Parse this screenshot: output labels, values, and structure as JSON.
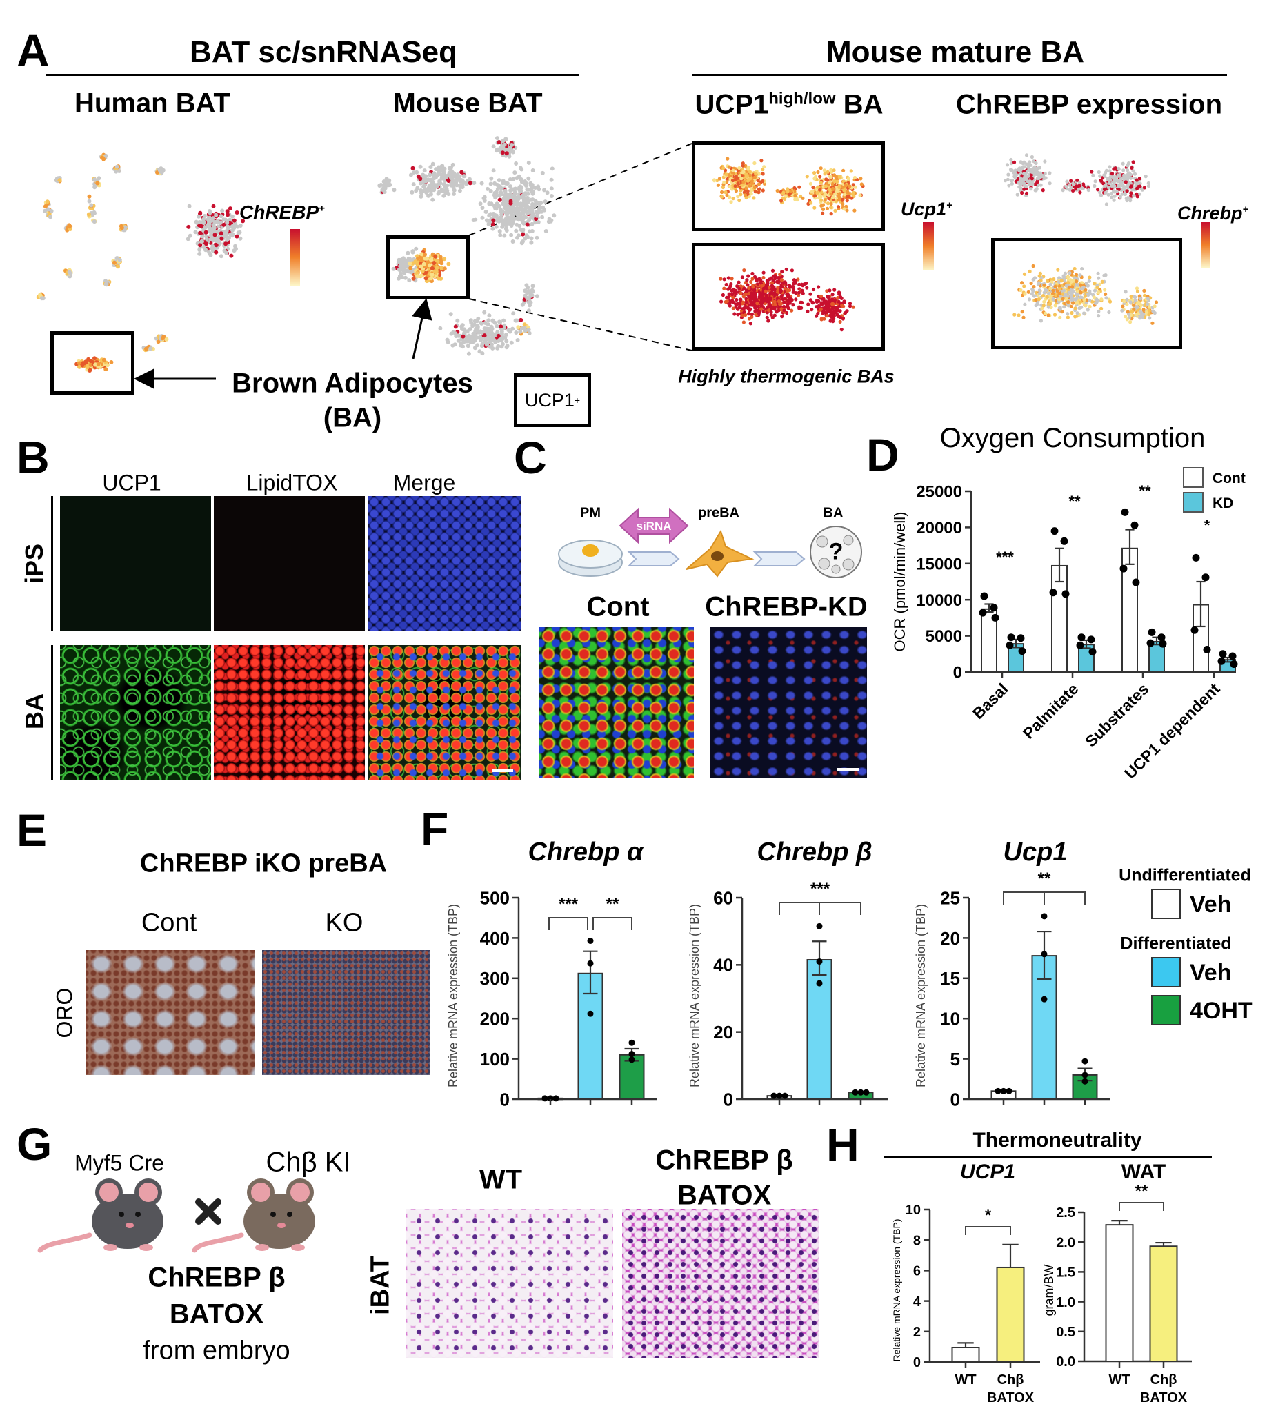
{
  "panelA": {
    "letter": "A",
    "left_header": "BAT sc/snRNASeq",
    "right_header": "Mouse mature BA",
    "human_title": "Human BAT",
    "mouse_title": "Mouse BAT",
    "ucp1_title_main": "UCP1",
    "ucp1_title_sup": "high/low",
    "ucp1_title_suffix": "BA",
    "chrebp_title": "ChREBP expression",
    "human_legend": "ChREBP",
    "human_legend_sup": "+",
    "ucp1_legend": "Ucp1",
    "ucp1_legend_sup": "+",
    "chrebp_legend": "Chrebp",
    "chrebp_legend_sup": "+",
    "ba_label_line1": "Brown Adipocytes",
    "ba_label_line2": "(BA)",
    "ucp1_box_label": "UCP1",
    "ucp1_box_sup": "+",
    "thermogenic_label": "Highly thermogenic BAs",
    "colors": {
      "gray": "#c8c8c8",
      "low": "#f9e08a",
      "mid": "#f29a3a",
      "high": "#c8102e"
    }
  },
  "panelB": {
    "letter": "B",
    "columns": [
      "UCP1",
      "LipidTOX",
      "Merge"
    ],
    "rows": [
      "iPS",
      "BA"
    ]
  },
  "panelC": {
    "letter": "C",
    "pm": "PM",
    "sirna": "siRNA",
    "preba": "preBA",
    "ba": "BA",
    "question": "?",
    "cont": "Cont",
    "kd": "ChREBP-KD"
  },
  "panelD": {
    "letter": "D"
  },
  "panelE": {
    "letter": "E",
    "title": "ChREBP iKO preBA",
    "cont": "Cont",
    "ko": "KO",
    "stain": "ORO"
  },
  "panelF": {
    "letter": "F",
    "legend": {
      "undiff": "Undifferentiated",
      "veh1": "Veh",
      "diff": "Differentiated",
      "veh2": "Veh",
      "ohT": "4OHT"
    }
  },
  "panelG": {
    "letter": "G",
    "myf5": "Myf5 Cre",
    "chb_ki": "Chβ KI",
    "result_line1": "ChREBP β",
    "result_line2": "BATOX",
    "result_line3": "from embryo",
    "tissue": "iBAT",
    "wt": "WT",
    "ko_line1": "ChREBP β",
    "ko_line2": "BATOX"
  },
  "panelH": {
    "letter": "H",
    "title": "Thermoneutrality"
  },
  "chart_data": [
    {
      "id": "D",
      "type": "bar",
      "title": "Oxygen Consumption",
      "ylabel": "OCR (pmol/min/well)",
      "xlabel": "",
      "ylim": [
        0,
        25000
      ],
      "yticks": [
        "0",
        "5000",
        "10000",
        "15000",
        "20000",
        "25000"
      ],
      "categories": [
        "Basal",
        "Palmitate",
        "Substrates",
        "UCP1 dependent"
      ],
      "legend_position": "top-right",
      "series": [
        {
          "name": "Cont",
          "color": "#ffffff",
          "values": [
            8700,
            14700,
            17100,
            9300
          ],
          "err": [
            [
              8300,
              9400
            ],
            [
              12500,
              17100
            ],
            [
              14900,
              19700
            ],
            [
              6300,
              12500
            ]
          ],
          "points": [
            [
              10500,
              8900,
              8200,
              7500
            ],
            [
              19500,
              18100,
              11000,
              10800
            ],
            [
              22100,
              20300,
              14300,
              12400
            ],
            [
              15800,
              13100,
              5800,
              3100
            ]
          ]
        },
        {
          "name": "KD",
          "color": "#5bc6dc",
          "values": [
            3900,
            3800,
            4200,
            1700
          ],
          "err": [
            [
              3400,
              4500
            ],
            [
              3300,
              4400
            ],
            [
              3800,
              4800
            ],
            [
              1400,
              2000
            ]
          ],
          "points": [
            [
              4800,
              4700,
              3700,
              2900
            ],
            [
              4800,
              4500,
              3700,
              2800
            ],
            [
              5500,
              4800,
              4000,
              3900
            ],
            [
              2500,
              2200,
              1500,
              1100
            ]
          ]
        }
      ],
      "significance": [
        "***",
        "**",
        "**",
        "*"
      ]
    },
    {
      "id": "F-chrebp-alpha",
      "type": "bar",
      "title": "Chrebp α",
      "ylabel": "Relative mRNA expression (TBP)",
      "ylim": [
        0,
        500
      ],
      "yticks": [
        "0",
        "100",
        "200",
        "300",
        "400",
        "500"
      ],
      "bars": [
        {
          "legend": "Undifferentiated Veh",
          "color": "#ffffff",
          "value": 2,
          "err": [
            1,
            3
          ],
          "points": [
            2,
            2,
            2
          ]
        },
        {
          "legend": "Differentiated Veh",
          "color": "#6fd8f4",
          "value": 312,
          "err": [
            262,
            367
          ],
          "points": [
            393,
            337,
            212
          ]
        },
        {
          "legend": "Differentiated 4OHT",
          "color": "#1e9e48",
          "value": 110,
          "err": [
            95,
            125
          ],
          "points": [
            140,
            112,
            98
          ]
        }
      ],
      "brackets": [
        {
          "from": 0,
          "to": 1,
          "label": "***"
        },
        {
          "from": 1,
          "to": 2,
          "label": "**"
        }
      ]
    },
    {
      "id": "F-chrebp-beta",
      "type": "bar",
      "title": "Chrebp β",
      "ylabel": "Relative mRNA expression (TBP)",
      "ylim": [
        0,
        60
      ],
      "yticks": [
        "0",
        "20",
        "40",
        "60"
      ],
      "bars": [
        {
          "legend": "Undifferentiated Veh",
          "color": "#ffffff",
          "value": 1,
          "err": [
            0.8,
            1.2
          ],
          "points": [
            1,
            1,
            1
          ]
        },
        {
          "legend": "Differentiated Veh",
          "color": "#6fd8f4",
          "value": 41.5,
          "err": [
            37,
            47
          ],
          "points": [
            51.5,
            41,
            34.5
          ]
        },
        {
          "legend": "Differentiated 4OHT",
          "color": "#1e9e48",
          "value": 2,
          "err": [
            1.8,
            2.2
          ],
          "points": [
            2,
            2,
            2
          ]
        }
      ],
      "brackets": [
        {
          "from": 0,
          "to": 2,
          "label": "***"
        }
      ]
    },
    {
      "id": "F-ucp1",
      "type": "bar",
      "title": "Ucp1",
      "ylabel": "Relative mRNA expression (TBP)",
      "ylim": [
        0,
        25
      ],
      "yticks": [
        "0",
        "5",
        "10",
        "15",
        "20",
        "25"
      ],
      "bars": [
        {
          "legend": "Undifferentiated Veh",
          "color": "#ffffff",
          "value": 1,
          "err": [
            0.9,
            1.1
          ],
          "points": [
            1,
            1,
            1
          ]
        },
        {
          "legend": "Differentiated Veh",
          "color": "#6fd8f4",
          "value": 17.8,
          "err": [
            14.9,
            20.8
          ],
          "points": [
            22.7,
            18,
            12.4
          ]
        },
        {
          "legend": "Differentiated 4OHT",
          "color": "#1e9e48",
          "value": 3,
          "err": [
            2.3,
            3.8
          ],
          "points": [
            4.7,
            3,
            2.2
          ]
        }
      ],
      "brackets": [
        {
          "from": 0,
          "to": 2,
          "label": "**"
        }
      ]
    },
    {
      "id": "H-ucp1",
      "type": "bar",
      "title": "UCP1",
      "ylabel": "Relative mRNA expression (TBP)",
      "ylim": [
        0,
        10
      ],
      "yticks": [
        "0",
        "2",
        "4",
        "6",
        "8",
        "10"
      ],
      "categories": [
        [
          "WT"
        ],
        [
          "Chβ",
          "BATOX"
        ]
      ],
      "bars": [
        {
          "color": "#ffffff",
          "value": 0.95,
          "err": [
            0.95,
            1.25
          ]
        },
        {
          "color": "#f6ef7e",
          "value": 6.2,
          "err": [
            6.2,
            7.7
          ]
        }
      ],
      "brackets": [
        {
          "from": 0,
          "to": 1,
          "label": "*"
        }
      ]
    },
    {
      "id": "H-wat",
      "type": "bar",
      "title": "WAT",
      "ylabel": "gram/BW",
      "ylim": [
        0,
        2.5
      ],
      "yticks": [
        "0.0",
        "0.5",
        "1.0",
        "1.5",
        "2.0",
        "2.5"
      ],
      "categories": [
        [
          "WT"
        ],
        [
          "Chβ",
          "BATOX"
        ]
      ],
      "bars": [
        {
          "color": "#ffffff",
          "value": 2.29,
          "err": [
            2.29,
            2.36
          ]
        },
        {
          "color": "#f6ef7e",
          "value": 1.93,
          "err": [
            1.93,
            1.99
          ]
        }
      ],
      "brackets": [
        {
          "from": 0,
          "to": 1,
          "label": "**"
        }
      ]
    }
  ]
}
